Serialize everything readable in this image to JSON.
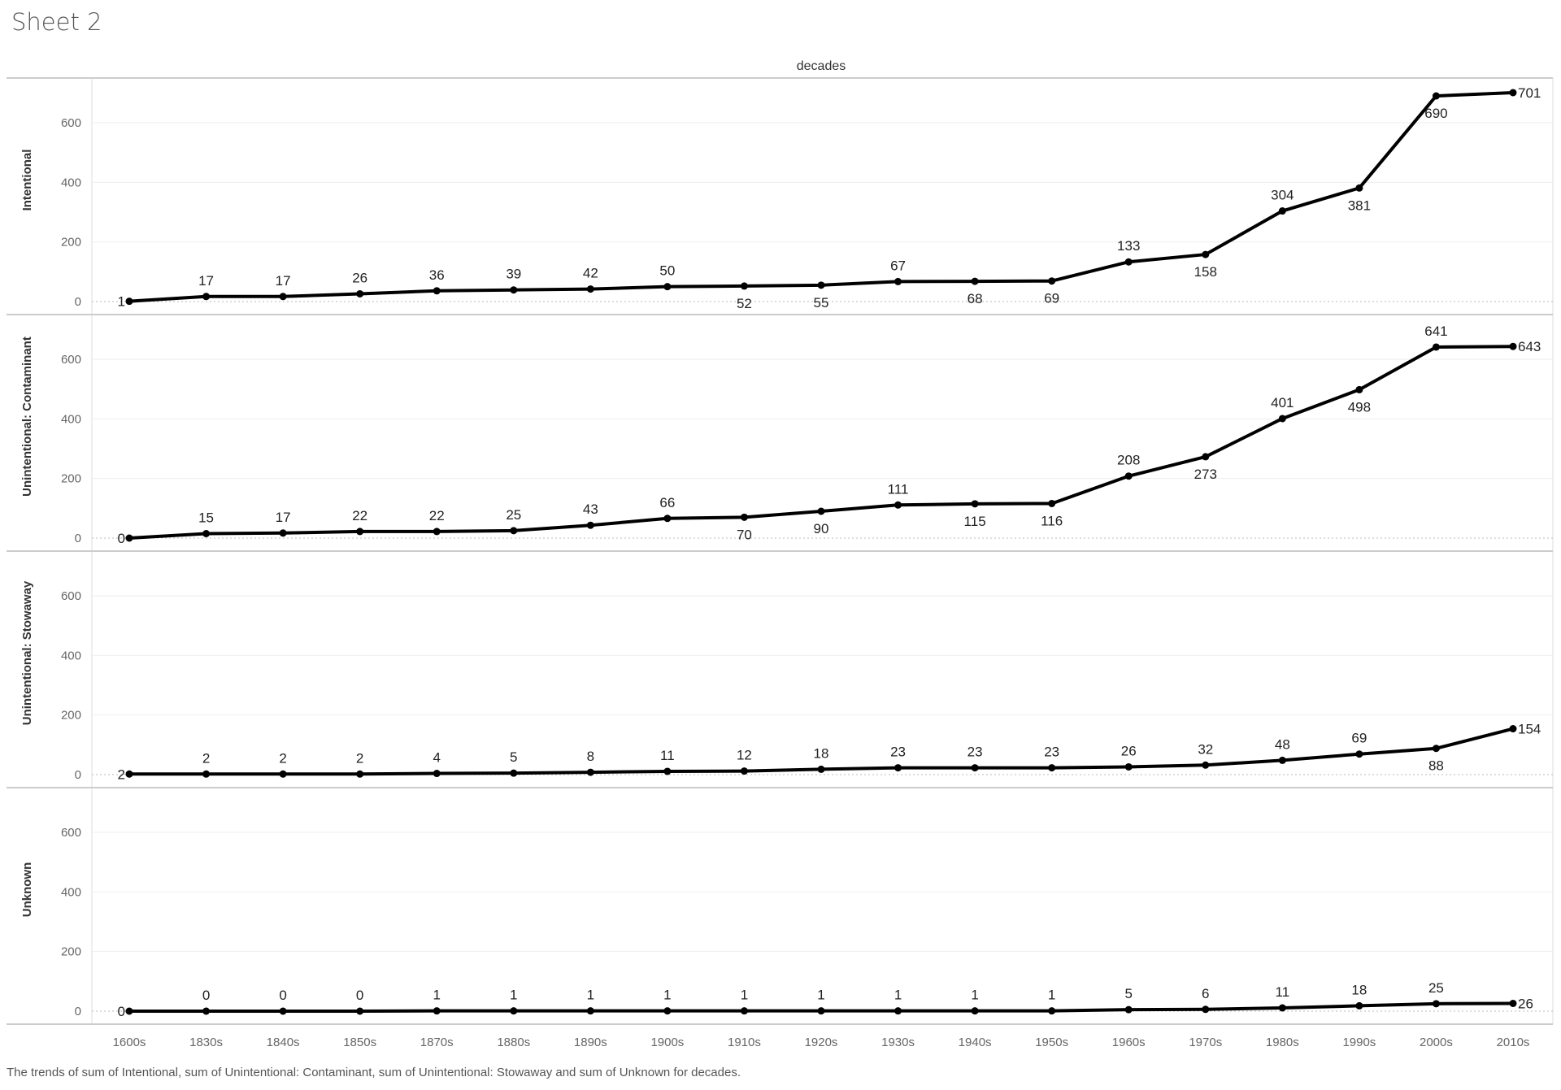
{
  "sheet_title": "Sheet 2",
  "footer_caption": "The trends of sum of Intentional, sum of Unintentional: Contaminant, sum of Unintentional: Stowaway and sum of Unknown for decades.",
  "chart_data": {
    "type": "line",
    "layout": "small-multiples, stacked vertically, shared x axis",
    "column_header": "decades",
    "categories": [
      "1600s",
      "1830s",
      "1840s",
      "1850s",
      "1870s",
      "1880s",
      "1890s",
      "1900s",
      "1910s",
      "1920s",
      "1930s",
      "1940s",
      "1950s",
      "1960s",
      "1970s",
      "1980s",
      "1990s",
      "2000s",
      "2010s"
    ],
    "y_ticks": [
      0,
      200,
      400,
      600
    ],
    "ylim": [
      0,
      750
    ],
    "grid": true,
    "line_color": "#000000",
    "markers": true,
    "data_labels": true,
    "series": [
      {
        "name": "Intentional",
        "values": [
          1,
          17,
          17,
          26,
          36,
          39,
          42,
          50,
          52,
          55,
          67,
          68,
          69,
          133,
          158,
          304,
          381,
          690,
          701
        ]
      },
      {
        "name": "Unintentional: Contaminant",
        "values": [
          0,
          15,
          17,
          22,
          22,
          25,
          43,
          66,
          70,
          90,
          111,
          115,
          116,
          208,
          273,
          401,
          498,
          641,
          643
        ]
      },
      {
        "name": "Unintentional: Stowaway",
        "values": [
          2,
          2,
          2,
          2,
          4,
          5,
          8,
          11,
          12,
          18,
          23,
          23,
          23,
          26,
          32,
          48,
          69,
          88,
          154
        ]
      },
      {
        "name": "Unknown",
        "values": [
          0,
          0,
          0,
          0,
          1,
          1,
          1,
          1,
          1,
          1,
          1,
          1,
          1,
          5,
          6,
          11,
          18,
          25,
          26
        ]
      }
    ]
  }
}
